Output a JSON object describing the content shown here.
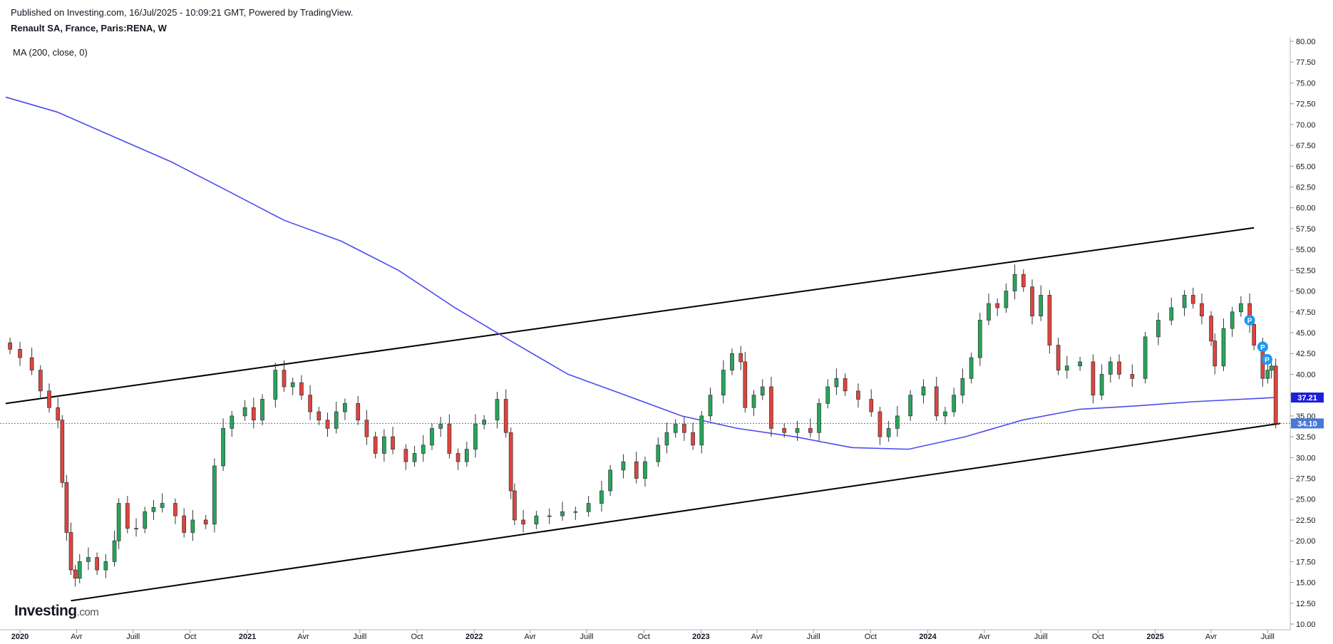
{
  "header": {
    "published": "Published on Investing.com, 16/Jul/2025 - 10:09:21 GMT, Powered by TradingView.",
    "symbol": "Renault SA, France, Paris:RENA, W",
    "indicator": "MA (200, close, 0)"
  },
  "logo": {
    "main": "Investing",
    "suffix": ".com"
  },
  "colors": {
    "up": "#26a65b",
    "down": "#e0443e",
    "ma": "#4b4bf0",
    "ma_label_bg": "#1f1fd6",
    "price_label_bg": "#4a78d8",
    "trendline": "#000000",
    "marker": "#2196f3"
  },
  "chart_data": {
    "type": "candlestick",
    "interval": "W",
    "y_axis": {
      "min": 10,
      "max": 80,
      "position": "right",
      "ticks": [
        "80.00",
        "77.50",
        "75.00",
        "72.50",
        "70.00",
        "67.50",
        "65.00",
        "62.50",
        "60.00",
        "57.50",
        "55.00",
        "52.50",
        "50.00",
        "47.50",
        "45.00",
        "42.50",
        "40.00",
        "37.50",
        "35.00",
        "32.50",
        "30.00",
        "27.50",
        "25.00",
        "22.50",
        "20.00",
        "17.50",
        "15.00",
        "12.50",
        "10.00"
      ]
    },
    "x_axis": {
      "range": [
        "2019-12-09",
        "2025-08-04"
      ],
      "ticks": [
        {
          "label": "2020",
          "date": "2020-01-01",
          "bold": true
        },
        {
          "label": "Avr",
          "date": "2020-04-01",
          "bold": false
        },
        {
          "label": "Juill",
          "date": "2020-07-01",
          "bold": false
        },
        {
          "label": "Oct",
          "date": "2020-10-01",
          "bold": false
        },
        {
          "label": "2021",
          "date": "2021-01-01",
          "bold": true
        },
        {
          "label": "Avr",
          "date": "2021-04-01",
          "bold": false
        },
        {
          "label": "Juill",
          "date": "2021-07-01",
          "bold": false
        },
        {
          "label": "Oct",
          "date": "2021-10-01",
          "bold": false
        },
        {
          "label": "2022",
          "date": "2022-01-01",
          "bold": true
        },
        {
          "label": "Avr",
          "date": "2022-04-01",
          "bold": false
        },
        {
          "label": "Juill",
          "date": "2022-07-01",
          "bold": false
        },
        {
          "label": "Oct",
          "date": "2022-10-01",
          "bold": false
        },
        {
          "label": "2023",
          "date": "2023-01-01",
          "bold": true
        },
        {
          "label": "Avr",
          "date": "2023-04-01",
          "bold": false
        },
        {
          "label": "Juill",
          "date": "2023-07-01",
          "bold": false
        },
        {
          "label": "Oct",
          "date": "2023-10-01",
          "bold": false
        },
        {
          "label": "2024",
          "date": "2024-01-01",
          "bold": true
        },
        {
          "label": "Avr",
          "date": "2024-04-01",
          "bold": false
        },
        {
          "label": "Juill",
          "date": "2024-07-01",
          "bold": false
        },
        {
          "label": "Oct",
          "date": "2024-10-01",
          "bold": false
        },
        {
          "label": "2025",
          "date": "2025-01-01",
          "bold": true
        },
        {
          "label": "Avr",
          "date": "2025-04-01",
          "bold": false
        },
        {
          "label": "Juill",
          "date": "2025-07-01",
          "bold": false
        }
      ]
    },
    "series": [
      {
        "name": "RENA",
        "kind": "weekly close (approx.)",
        "points": [
          [
            "2019-12-16",
            43.0
          ],
          [
            "2020-01-01",
            42.0
          ],
          [
            "2020-01-20",
            40.5
          ],
          [
            "2020-02-03",
            38.0
          ],
          [
            "2020-02-17",
            36.0
          ],
          [
            "2020-03-02",
            34.5
          ],
          [
            "2020-03-09",
            27.0
          ],
          [
            "2020-03-16",
            21.0
          ],
          [
            "2020-03-23",
            16.5
          ],
          [
            "2020-03-30",
            15.5
          ],
          [
            "2020-04-06",
            17.5
          ],
          [
            "2020-04-20",
            18.0
          ],
          [
            "2020-05-04",
            16.5
          ],
          [
            "2020-05-18",
            17.5
          ],
          [
            "2020-06-01",
            20.0
          ],
          [
            "2020-06-08",
            24.5
          ],
          [
            "2020-06-22",
            21.5
          ],
          [
            "2020-07-06",
            21.5
          ],
          [
            "2020-07-20",
            23.5
          ],
          [
            "2020-08-03",
            24.0
          ],
          [
            "2020-08-17",
            24.5
          ],
          [
            "2020-09-07",
            23.0
          ],
          [
            "2020-09-21",
            21.0
          ],
          [
            "2020-10-05",
            22.5
          ],
          [
            "2020-10-26",
            22.0
          ],
          [
            "2020-11-09",
            29.0
          ],
          [
            "2020-11-23",
            33.5
          ],
          [
            "2020-12-07",
            35.0
          ],
          [
            "2020-12-28",
            36.0
          ],
          [
            "2021-01-11",
            34.5
          ],
          [
            "2021-01-25",
            37.0
          ],
          [
            "2021-02-15",
            40.5
          ],
          [
            "2021-03-01",
            38.5
          ],
          [
            "2021-03-15",
            39.0
          ],
          [
            "2021-03-29",
            37.5
          ],
          [
            "2021-04-12",
            35.5
          ],
          [
            "2021-04-26",
            34.5
          ],
          [
            "2021-05-10",
            33.5
          ],
          [
            "2021-05-24",
            35.5
          ],
          [
            "2021-06-07",
            36.5
          ],
          [
            "2021-06-28",
            34.5
          ],
          [
            "2021-07-12",
            32.5
          ],
          [
            "2021-07-26",
            30.5
          ],
          [
            "2021-08-09",
            32.5
          ],
          [
            "2021-08-23",
            31.0
          ],
          [
            "2021-09-13",
            29.5
          ],
          [
            "2021-09-27",
            30.5
          ],
          [
            "2021-10-11",
            31.5
          ],
          [
            "2021-10-25",
            33.5
          ],
          [
            "2021-11-08",
            34.0
          ],
          [
            "2021-11-22",
            30.5
          ],
          [
            "2021-12-06",
            29.5
          ],
          [
            "2021-12-20",
            31.0
          ],
          [
            "2022-01-03",
            34.0
          ],
          [
            "2022-01-17",
            34.5
          ],
          [
            "2022-02-07",
            37.0
          ],
          [
            "2022-02-21",
            33.0
          ],
          [
            "2022-03-01",
            26.0
          ],
          [
            "2022-03-07",
            22.5
          ],
          [
            "2022-03-21",
            22.0
          ],
          [
            "2022-04-11",
            23.0
          ],
          [
            "2022-05-02",
            23.0
          ],
          [
            "2022-05-23",
            23.5
          ],
          [
            "2022-06-13",
            23.5
          ],
          [
            "2022-07-04",
            24.5
          ],
          [
            "2022-07-25",
            26.0
          ],
          [
            "2022-08-08",
            28.5
          ],
          [
            "2022-08-29",
            29.5
          ],
          [
            "2022-09-19",
            27.5
          ],
          [
            "2022-10-03",
            29.5
          ],
          [
            "2022-10-24",
            31.5
          ],
          [
            "2022-11-07",
            33.0
          ],
          [
            "2022-11-21",
            34.0
          ],
          [
            "2022-12-05",
            33.0
          ],
          [
            "2022-12-19",
            31.5
          ],
          [
            "2023-01-02",
            35.0
          ],
          [
            "2023-01-16",
            37.5
          ],
          [
            "2023-02-06",
            40.5
          ],
          [
            "2023-02-20",
            42.5
          ],
          [
            "2023-03-06",
            41.5
          ],
          [
            "2023-03-13",
            36.0
          ],
          [
            "2023-03-27",
            37.5
          ],
          [
            "2023-04-10",
            38.5
          ],
          [
            "2023-04-24",
            33.5
          ],
          [
            "2023-05-15",
            33.0
          ],
          [
            "2023-06-05",
            33.5
          ],
          [
            "2023-06-26",
            33.0
          ],
          [
            "2023-07-10",
            36.5
          ],
          [
            "2023-07-24",
            38.5
          ],
          [
            "2023-08-07",
            39.5
          ],
          [
            "2023-08-21",
            38.0
          ],
          [
            "2023-09-11",
            37.0
          ],
          [
            "2023-10-02",
            35.5
          ],
          [
            "2023-10-16",
            32.5
          ],
          [
            "2023-10-30",
            33.5
          ],
          [
            "2023-11-13",
            35.0
          ],
          [
            "2023-12-04",
            37.5
          ],
          [
            "2023-12-25",
            38.5
          ],
          [
            "2024-01-15",
            35.0
          ],
          [
            "2024-01-29",
            35.5
          ],
          [
            "2024-02-12",
            37.5
          ],
          [
            "2024-02-26",
            39.5
          ],
          [
            "2024-03-11",
            42.0
          ],
          [
            "2024-03-25",
            46.5
          ],
          [
            "2024-04-08",
            48.5
          ],
          [
            "2024-04-22",
            48.0
          ],
          [
            "2024-05-06",
            50.0
          ],
          [
            "2024-05-20",
            52.0
          ],
          [
            "2024-06-03",
            50.5
          ],
          [
            "2024-06-17",
            47.0
          ],
          [
            "2024-07-01",
            49.5
          ],
          [
            "2024-07-15",
            43.5
          ],
          [
            "2024-07-29",
            40.5
          ],
          [
            "2024-08-12",
            41.0
          ],
          [
            "2024-09-02",
            41.5
          ],
          [
            "2024-09-23",
            37.5
          ],
          [
            "2024-10-07",
            40.0
          ],
          [
            "2024-10-21",
            41.5
          ],
          [
            "2024-11-04",
            40.0
          ],
          [
            "2024-11-25",
            39.5
          ],
          [
            "2024-12-16",
            44.5
          ],
          [
            "2025-01-06",
            46.5
          ],
          [
            "2025-01-27",
            48.0
          ],
          [
            "2025-02-17",
            49.5
          ],
          [
            "2025-03-03",
            48.5
          ],
          [
            "2025-03-17",
            47.0
          ],
          [
            "2025-04-01",
            44.0
          ],
          [
            "2025-04-07",
            41.0
          ],
          [
            "2025-04-21",
            45.5
          ],
          [
            "2025-05-05",
            47.5
          ],
          [
            "2025-05-19",
            48.5
          ],
          [
            "2025-06-02",
            46.0
          ],
          [
            "2025-06-09",
            43.5
          ],
          [
            "2025-06-23",
            39.5
          ],
          [
            "2025-07-01",
            40.5
          ],
          [
            "2025-07-07",
            41.0
          ],
          [
            "2025-07-14",
            34.1
          ]
        ]
      },
      {
        "name": "MA (200, close, 0)",
        "kind": "line",
        "points": [
          [
            "2019-12-09",
            73.3
          ],
          [
            "2020-03-01",
            71.5
          ],
          [
            "2020-06-01",
            68.5
          ],
          [
            "2020-09-01",
            65.5
          ],
          [
            "2020-12-01",
            62.0
          ],
          [
            "2021-03-01",
            58.5
          ],
          [
            "2021-06-01",
            56.0
          ],
          [
            "2021-09-01",
            52.5
          ],
          [
            "2021-12-01",
            48.0
          ],
          [
            "2022-03-01",
            44.0
          ],
          [
            "2022-06-01",
            40.0
          ],
          [
            "2022-09-01",
            37.5
          ],
          [
            "2022-12-01",
            35.0
          ],
          [
            "2023-03-01",
            33.5
          ],
          [
            "2023-06-01",
            32.5
          ],
          [
            "2023-09-01",
            31.2
          ],
          [
            "2023-12-01",
            31.0
          ],
          [
            "2024-03-01",
            32.5
          ],
          [
            "2024-06-01",
            34.5
          ],
          [
            "2024-09-01",
            35.8
          ],
          [
            "2024-12-01",
            36.2
          ],
          [
            "2025-03-01",
            36.7
          ],
          [
            "2025-07-14",
            37.21
          ]
        ]
      }
    ],
    "trendlines": [
      {
        "name": "upper",
        "from": [
          "2019-12-09",
          36.5
        ],
        "to": [
          "2025-06-09",
          57.6
        ]
      },
      {
        "name": "lower",
        "from": [
          "2020-03-23",
          12.8
        ],
        "to": [
          "2025-07-21",
          34.1
        ]
      }
    ],
    "horizontal_line": {
      "value": 34.1,
      "style": "dotted"
    },
    "price_labels": [
      {
        "name": "ma",
        "value": 37.21,
        "text": "37.21"
      },
      {
        "name": "last",
        "value": 34.1,
        "text": "34.10"
      }
    ],
    "markers": [
      {
        "date": "2025-06-02",
        "value": 46.5,
        "text": "P"
      },
      {
        "date": "2025-06-23",
        "value": 43.3,
        "text": "P"
      },
      {
        "date": "2025-06-30",
        "value": 41.8,
        "text": "P"
      }
    ]
  }
}
